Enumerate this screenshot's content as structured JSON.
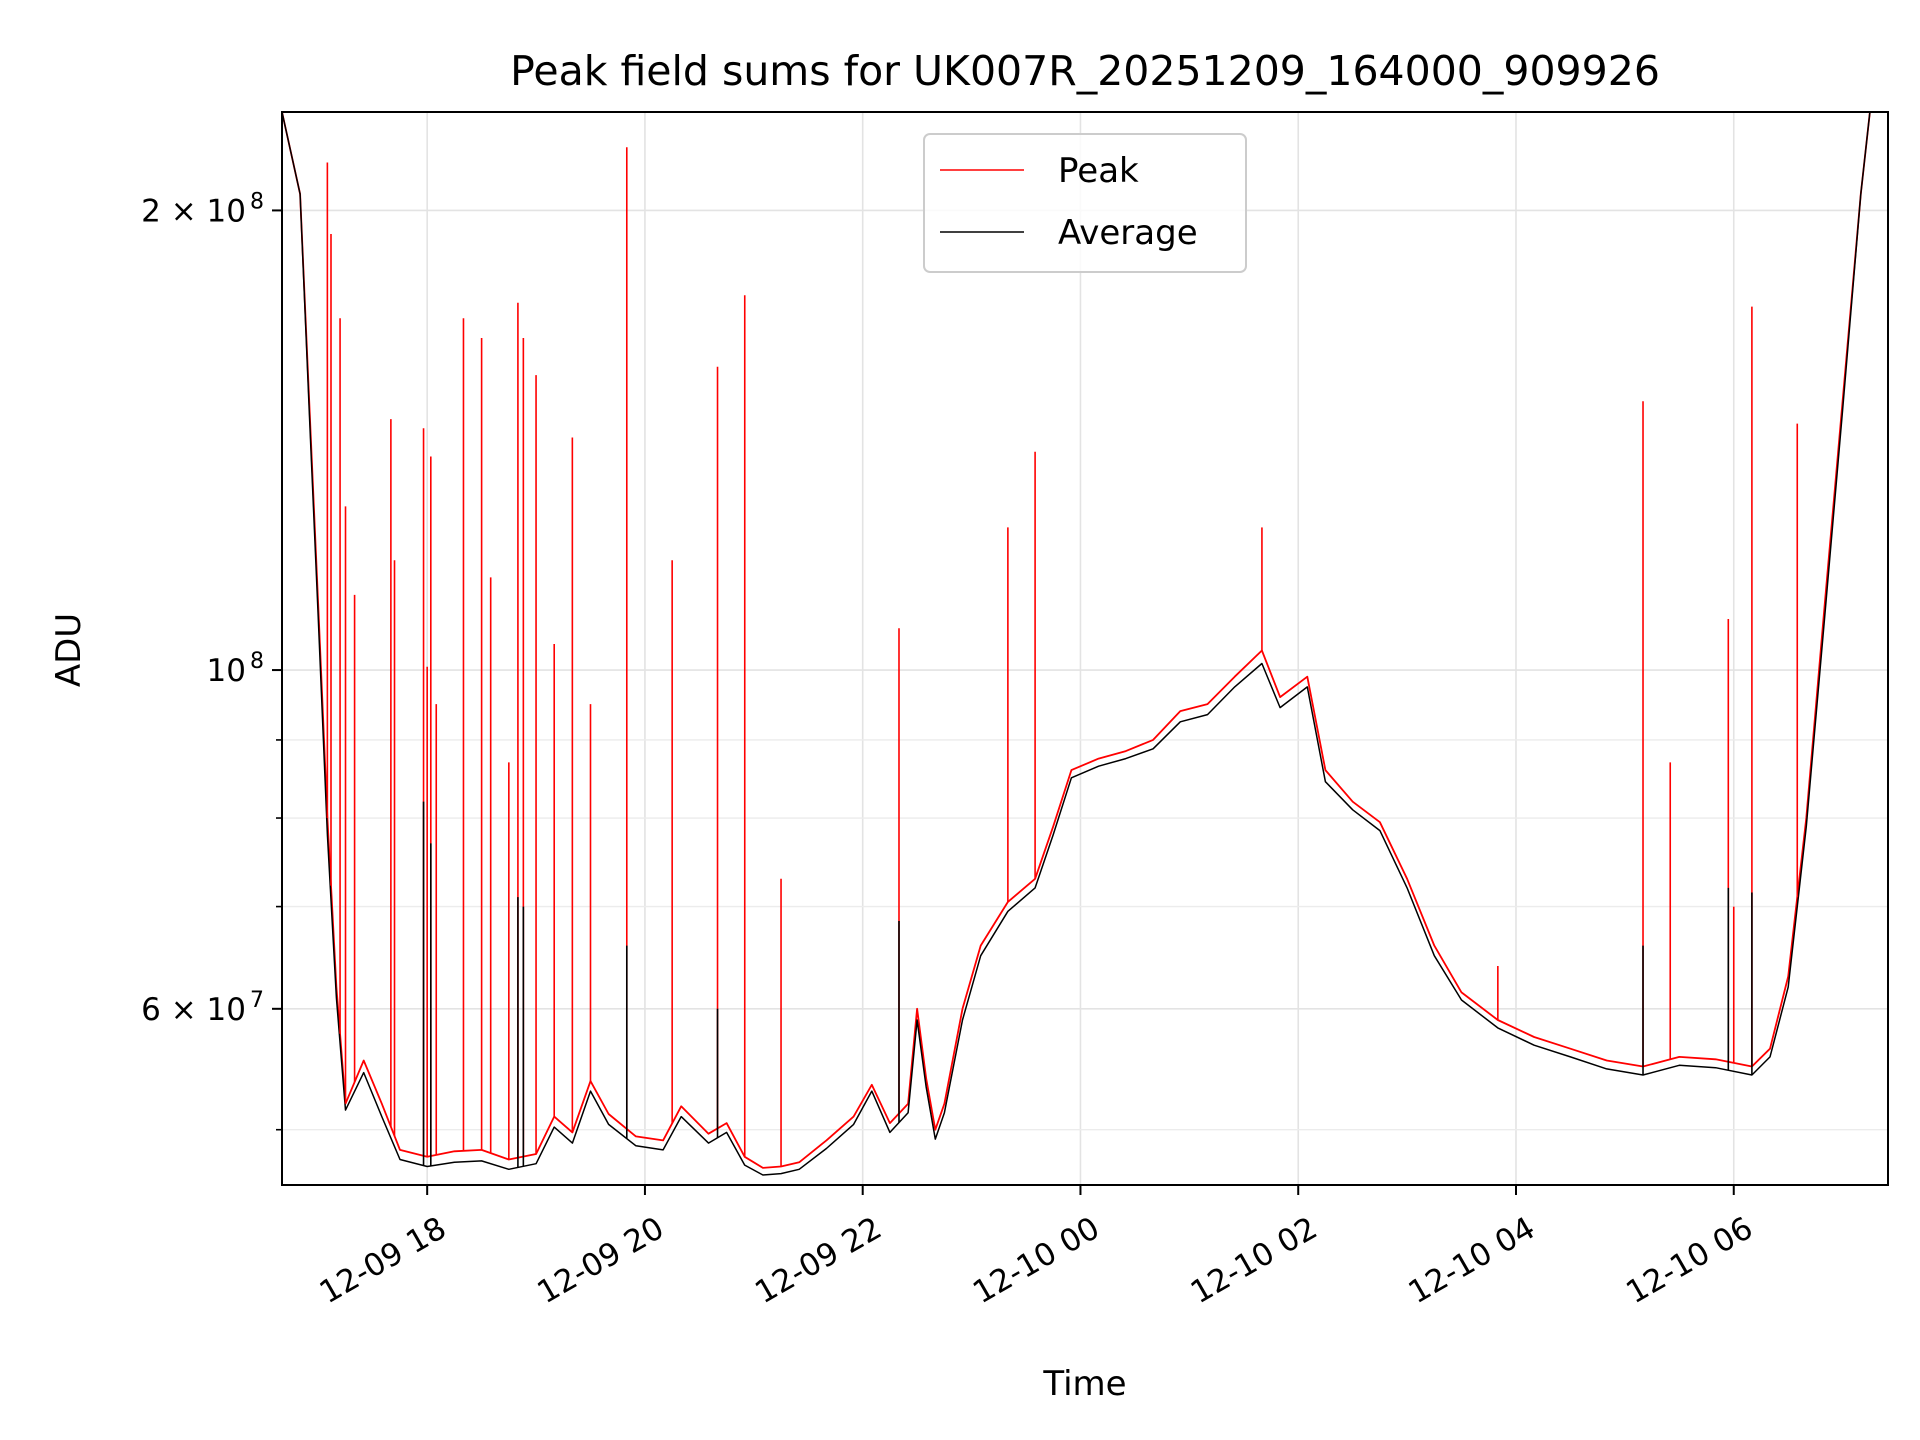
{
  "chart_data": {
    "type": "line",
    "title": "Peak field sums for UK007R_20251209_164000_909926",
    "xlabel": "Time",
    "ylabel": "ADU",
    "yscale": "log",
    "xlim": [
      "2025-12-09 16:40",
      "2025-12-10 07:25"
    ],
    "ylim": [
      46000000,
      232000000
    ],
    "grid": true,
    "legend_position": "top-center",
    "x_ticks": [
      {
        "value": "2025-12-09 18:00",
        "label": "12-09 18"
      },
      {
        "value": "2025-12-09 20:00",
        "label": "12-09 20"
      },
      {
        "value": "2025-12-09 22:00",
        "label": "12-09 22"
      },
      {
        "value": "2025-12-10 00:00",
        "label": "12-10 00"
      },
      {
        "value": "2025-12-10 02:00",
        "label": "12-10 02"
      },
      {
        "value": "2025-12-10 04:00",
        "label": "12-10 04"
      },
      {
        "value": "2025-12-10 06:00",
        "label": "12-10 06"
      }
    ],
    "y_major_ticks": [
      {
        "value": 200000000,
        "label": "2 × 10",
        "exp": "8"
      },
      {
        "value": 100000000,
        "label": "10",
        "exp": "8"
      },
      {
        "value": 60000000,
        "label": "6 × 10",
        "exp": "7"
      }
    ],
    "y_minor_ticks": [
      50000000,
      70000000,
      80000000,
      90000000
    ],
    "series": [
      {
        "name": "Peak",
        "color": "#ff0000",
        "points": [
          [
            "2025-12-09 16:40",
            232000000
          ],
          [
            "2025-12-09 16:50",
            205000000
          ],
          [
            "2025-12-09 16:55",
            150000000
          ],
          [
            "2025-12-09 17:00",
            110000000
          ],
          [
            "2025-12-09 17:05",
            80000000
          ],
          [
            "2025-12-09 17:10",
            62000000
          ],
          [
            "2025-12-09 17:15",
            52000000
          ],
          [
            "2025-12-09 17:25",
            55500000
          ],
          [
            "2025-12-09 17:35",
            52000000
          ],
          [
            "2025-12-09 17:45",
            48500000
          ],
          [
            "2025-12-09 18:00",
            48000000
          ],
          [
            "2025-12-09 18:15",
            48400000
          ],
          [
            "2025-12-09 18:30",
            48500000
          ],
          [
            "2025-12-09 18:45",
            47800000
          ],
          [
            "2025-12-09 19:00",
            48200000
          ],
          [
            "2025-12-09 19:10",
            51000000
          ],
          [
            "2025-12-09 19:20",
            49800000
          ],
          [
            "2025-12-09 19:30",
            53800000
          ],
          [
            "2025-12-09 19:40",
            51200000
          ],
          [
            "2025-12-09 19:55",
            49500000
          ],
          [
            "2025-12-09 20:10",
            49200000
          ],
          [
            "2025-12-09 20:20",
            51800000
          ],
          [
            "2025-12-09 20:35",
            49700000
          ],
          [
            "2025-12-09 20:45",
            50500000
          ],
          [
            "2025-12-09 20:55",
            48000000
          ],
          [
            "2025-12-09 21:05",
            47200000
          ],
          [
            "2025-12-09 21:15",
            47300000
          ],
          [
            "2025-12-09 21:25",
            47600000
          ],
          [
            "2025-12-09 21:40",
            49200000
          ],
          [
            "2025-12-09 21:55",
            51000000
          ],
          [
            "2025-12-09 22:05",
            53500000
          ],
          [
            "2025-12-09 22:15",
            50500000
          ],
          [
            "2025-12-09 22:25",
            52000000
          ],
          [
            "2025-12-09 22:30",
            60000000
          ],
          [
            "2025-12-09 22:35",
            54000000
          ],
          [
            "2025-12-09 22:40",
            50000000
          ],
          [
            "2025-12-09 22:45",
            52000000
          ],
          [
            "2025-12-09 22:55",
            60000000
          ],
          [
            "2025-12-09 23:05",
            66000000
          ],
          [
            "2025-12-09 23:20",
            70500000
          ],
          [
            "2025-12-09 23:35",
            73000000
          ],
          [
            "2025-12-09 23:45",
            79000000
          ],
          [
            "2025-12-09 23:55",
            86000000
          ],
          [
            "2025-12-10 00:10",
            87500000
          ],
          [
            "2025-12-10 00:25",
            88500000
          ],
          [
            "2025-12-10 00:40",
            90000000
          ],
          [
            "2025-12-10 00:55",
            94000000
          ],
          [
            "2025-12-10 01:10",
            95000000
          ],
          [
            "2025-12-10 01:25",
            99000000
          ],
          [
            "2025-12-10 01:40",
            103000000
          ],
          [
            "2025-12-10 01:50",
            96000000
          ],
          [
            "2025-12-10 02:05",
            99000000
          ],
          [
            "2025-12-10 02:15",
            86000000
          ],
          [
            "2025-12-10 02:30",
            82000000
          ],
          [
            "2025-12-10 02:45",
            79500000
          ],
          [
            "2025-12-10 03:00",
            73000000
          ],
          [
            "2025-12-10 03:15",
            66000000
          ],
          [
            "2025-12-10 03:30",
            61500000
          ],
          [
            "2025-12-10 03:50",
            59000000
          ],
          [
            "2025-12-10 04:10",
            57500000
          ],
          [
            "2025-12-10 04:30",
            56500000
          ],
          [
            "2025-12-10 04:50",
            55500000
          ],
          [
            "2025-12-10 05:10",
            55000000
          ],
          [
            "2025-12-10 05:30",
            55800000
          ],
          [
            "2025-12-10 05:50",
            55600000
          ],
          [
            "2025-12-10 06:10",
            55000000
          ],
          [
            "2025-12-10 06:20",
            56500000
          ],
          [
            "2025-12-10 06:30",
            63000000
          ],
          [
            "2025-12-10 06:40",
            80000000
          ],
          [
            "2025-12-10 06:50",
            110000000
          ],
          [
            "2025-12-10 07:00",
            150000000
          ],
          [
            "2025-12-10 07:10",
            205000000
          ],
          [
            "2025-12-10 07:15",
            232000000
          ]
        ],
        "spikes": [
          [
            "2025-12-09 17:05",
            215000000
          ],
          [
            "2025-12-09 17:07",
            193000000
          ],
          [
            "2025-12-09 17:12",
            170000000
          ],
          [
            "2025-12-09 17:15",
            128000000
          ],
          [
            "2025-12-09 17:20",
            112000000
          ],
          [
            "2025-12-09 17:40",
            146000000
          ],
          [
            "2025-12-09 17:42",
            118000000
          ],
          [
            "2025-12-09 17:58",
            144000000
          ],
          [
            "2025-12-09 18:00",
            100500000
          ],
          [
            "2025-12-09 18:02",
            138000000
          ],
          [
            "2025-12-09 18:05",
            95000000
          ],
          [
            "2025-12-09 18:20",
            170000000
          ],
          [
            "2025-12-09 18:30",
            165000000
          ],
          [
            "2025-12-09 18:35",
            115000000
          ],
          [
            "2025-12-09 18:45",
            87000000
          ],
          [
            "2025-12-09 18:50",
            174000000
          ],
          [
            "2025-12-09 18:53",
            165000000
          ],
          [
            "2025-12-09 19:00",
            156000000
          ],
          [
            "2025-12-09 19:10",
            104000000
          ],
          [
            "2025-12-09 19:20",
            142000000
          ],
          [
            "2025-12-09 19:30",
            95000000
          ],
          [
            "2025-12-09 19:50",
            220000000
          ],
          [
            "2025-12-09 20:15",
            118000000
          ],
          [
            "2025-12-09 20:40",
            158000000
          ],
          [
            "2025-12-09 20:55",
            176000000
          ],
          [
            "2025-12-09 21:15",
            73000000
          ],
          [
            "2025-12-09 22:20",
            106500000
          ],
          [
            "2025-12-09 23:20",
            124000000
          ],
          [
            "2025-12-09 23:35",
            139000000
          ],
          [
            "2025-12-10 01:40",
            124000000
          ],
          [
            "2025-12-10 03:50",
            64000000
          ],
          [
            "2025-12-10 05:10",
            150000000
          ],
          [
            "2025-12-10 05:25",
            87000000
          ],
          [
            "2025-12-10 05:57",
            108000000
          ],
          [
            "2025-12-10 06:00",
            70000000
          ],
          [
            "2025-12-10 06:10",
            173000000
          ],
          [
            "2025-12-10 06:35",
            145000000
          ]
        ]
      },
      {
        "name": "Average",
        "color": "#000000",
        "points": [
          [
            "2025-12-09 16:40",
            232000000
          ],
          [
            "2025-12-09 16:50",
            205000000
          ],
          [
            "2025-12-09 16:55",
            148000000
          ],
          [
            "2025-12-09 17:00",
            108000000
          ],
          [
            "2025-12-09 17:05",
            78000000
          ],
          [
            "2025-12-09 17:10",
            61000000
          ],
          [
            "2025-12-09 17:15",
            51500000
          ],
          [
            "2025-12-09 17:25",
            54500000
          ],
          [
            "2025-12-09 17:35",
            51000000
          ],
          [
            "2025-12-09 17:45",
            47800000
          ],
          [
            "2025-12-09 18:00",
            47300000
          ],
          [
            "2025-12-09 18:15",
            47600000
          ],
          [
            "2025-12-09 18:30",
            47700000
          ],
          [
            "2025-12-09 18:45",
            47100000
          ],
          [
            "2025-12-09 19:00",
            47500000
          ],
          [
            "2025-12-09 19:10",
            50200000
          ],
          [
            "2025-12-09 19:20",
            49000000
          ],
          [
            "2025-12-09 19:30",
            53000000
          ],
          [
            "2025-12-09 19:40",
            50400000
          ],
          [
            "2025-12-09 19:55",
            48800000
          ],
          [
            "2025-12-09 20:10",
            48500000
          ],
          [
            "2025-12-09 20:20",
            51000000
          ],
          [
            "2025-12-09 20:35",
            49000000
          ],
          [
            "2025-12-09 20:45",
            49800000
          ],
          [
            "2025-12-09 20:55",
            47400000
          ],
          [
            "2025-12-09 21:05",
            46700000
          ],
          [
            "2025-12-09 21:15",
            46800000
          ],
          [
            "2025-12-09 21:25",
            47100000
          ],
          [
            "2025-12-09 21:40",
            48600000
          ],
          [
            "2025-12-09 21:55",
            50400000
          ],
          [
            "2025-12-09 22:05",
            53000000
          ],
          [
            "2025-12-09 22:15",
            49800000
          ],
          [
            "2025-12-09 22:25",
            51300000
          ],
          [
            "2025-12-09 22:30",
            59000000
          ],
          [
            "2025-12-09 22:35",
            53300000
          ],
          [
            "2025-12-09 22:40",
            49300000
          ],
          [
            "2025-12-09 22:45",
            51300000
          ],
          [
            "2025-12-09 22:55",
            59000000
          ],
          [
            "2025-12-09 23:05",
            65000000
          ],
          [
            "2025-12-09 23:20",
            69500000
          ],
          [
            "2025-12-09 23:35",
            72000000
          ],
          [
            "2025-12-09 23:45",
            78000000
          ],
          [
            "2025-12-09 23:55",
            85000000
          ],
          [
            "2025-12-10 00:10",
            86500000
          ],
          [
            "2025-12-10 00:25",
            87500000
          ],
          [
            "2025-12-10 00:40",
            88800000
          ],
          [
            "2025-12-10 00:55",
            92500000
          ],
          [
            "2025-12-10 01:10",
            93500000
          ],
          [
            "2025-12-10 01:25",
            97500000
          ],
          [
            "2025-12-10 01:40",
            101000000
          ],
          [
            "2025-12-10 01:50",
            94500000
          ],
          [
            "2025-12-10 02:05",
            97500000
          ],
          [
            "2025-12-10 02:15",
            84500000
          ],
          [
            "2025-12-10 02:30",
            81000000
          ],
          [
            "2025-12-10 02:45",
            78500000
          ],
          [
            "2025-12-10 03:00",
            72000000
          ],
          [
            "2025-12-10 03:15",
            65000000
          ],
          [
            "2025-12-10 03:30",
            60800000
          ],
          [
            "2025-12-10 03:50",
            58300000
          ],
          [
            "2025-12-10 04:10",
            56800000
          ],
          [
            "2025-12-10 04:30",
            55800000
          ],
          [
            "2025-12-10 04:50",
            54800000
          ],
          [
            "2025-12-10 05:10",
            54300000
          ],
          [
            "2025-12-10 05:30",
            55100000
          ],
          [
            "2025-12-10 05:50",
            54900000
          ],
          [
            "2025-12-10 06:10",
            54300000
          ],
          [
            "2025-12-10 06:20",
            55800000
          ],
          [
            "2025-12-10 06:30",
            62000000
          ],
          [
            "2025-12-10 06:40",
            79000000
          ],
          [
            "2025-12-10 06:50",
            108000000
          ],
          [
            "2025-12-10 07:00",
            148000000
          ],
          [
            "2025-12-10 07:10",
            205000000
          ],
          [
            "2025-12-10 07:15",
            232000000
          ]
        ],
        "spikes": [
          [
            "2025-12-09 17:58",
            82000000
          ],
          [
            "2025-12-09 18:02",
            77000000
          ],
          [
            "2025-12-09 18:50",
            71000000
          ],
          [
            "2025-12-09 18:53",
            70000000
          ],
          [
            "2025-12-09 19:50",
            66000000
          ],
          [
            "2025-12-09 20:40",
            60000000
          ],
          [
            "2025-12-09 22:20",
            68500000
          ],
          [
            "2025-12-10 05:10",
            66000000
          ],
          [
            "2025-12-10 05:57",
            72000000
          ],
          [
            "2025-12-10 06:10",
            71500000
          ]
        ]
      }
    ]
  }
}
